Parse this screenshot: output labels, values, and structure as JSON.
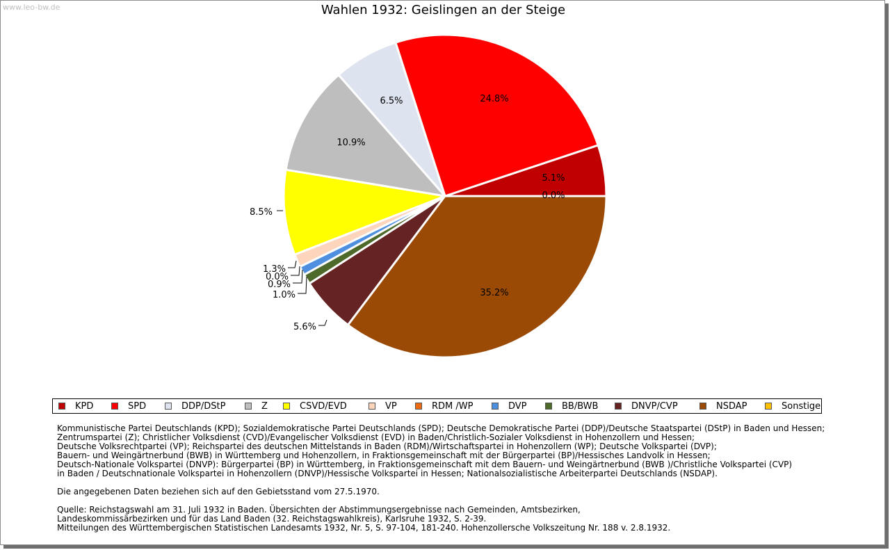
{
  "watermark": "www.leo-bw.de",
  "chart_data": {
    "type": "pie",
    "title": "Wahlen 1932: Geislingen an der Steige",
    "slices": [
      {
        "name": "KPD",
        "value": 5.1,
        "label": "5.1%",
        "color": "#c00000"
      },
      {
        "name": "SPD",
        "value": 24.8,
        "label": "24.8%",
        "color": "#ff0000"
      },
      {
        "name": "DDP/DStP",
        "value": 6.5,
        "label": "6.5%",
        "color": "#dde3ef"
      },
      {
        "name": "Z",
        "value": 10.9,
        "label": "10.9%",
        "color": "#bebebe"
      },
      {
        "name": "CSVD/EVD",
        "value": 8.5,
        "label": "8.5%",
        "color": "#ffff00"
      },
      {
        "name": "VP",
        "value": 1.3,
        "label": "1.3%",
        "color": "#fdd5bd"
      },
      {
        "name": "RDM /WP",
        "value": 0.0,
        "label": "0.0%",
        "color": "#ee6a10"
      },
      {
        "name": "DVP",
        "value": 0.9,
        "label": "0.9%",
        "color": "#4f8fdf"
      },
      {
        "name": "BB/BWB",
        "value": 1.0,
        "label": "1.0%",
        "color": "#4e6a2a"
      },
      {
        "name": "DNVP/CVP",
        "value": 5.6,
        "label": "5.6%",
        "color": "#652323"
      },
      {
        "name": "NSDAP",
        "value": 35.2,
        "label": "35.2%",
        "color": "#9a4a05"
      },
      {
        "name": "Sonstige",
        "value": 0.0,
        "label": "0.0%",
        "color": "#ffc000"
      }
    ]
  },
  "notes": {
    "parties": "Kommunistische Partei Deutschlands (KPD); Sozialdemokratische Partei Deutschlands (SPD); Deutsche Demokratische Partei (DDP)/Deutsche Staatspartei (DStP) in Baden und Hessen;\nZentrumspartei (Z); Christlicher Volksdienst (CVD)/Evangelischer Volksdienst (EVD) in Baden/Christlich-Sozialer Volksdienst in Hohenzollern und Hessen;\nDeutsche Volksrechtpartei (VP); Reichspartei des deutschen Mittelstands in Baden (RDM)/Wirtschaftspartei in Hohenzollern (WP); Deutsche Volkspartei (DVP);\nBauern- und Weingärtnerbund (BWB) in Württemberg und Hohenzollern, in Fraktionsgemeinschaft mit der Bürgerpartei (BP)/Hessisches Landvolk in Hessen;\nDeutsch-Nationale Volkspartei (DNVP): Bürgerpartei (BP) in Württemberg, in Fraktionsgemeinschaft mit dem Bauern- und Weingärtnerbund (BWB )/Christliche Volkspartei (CVP)\nin Baden / Deutschnationale Volkspartei in Hohenzollern (DNVP)/Hessische Volkspartei in Hessen; Nationalsozialistische Arbeiterpartei Deutschlands (NSDAP).",
    "territory": "Die angegebenen Daten beziehen sich auf den Gebietsstand vom 27.5.1970.",
    "source": "Quelle: Reichstagswahl am 31. Juli 1932 in Baden. Übersichten der Abstimmungsergebnisse nach Gemeinden, Amtsbezirken,\nLandeskommissärbezirken und für das Land Baden (32. Reichstagswahlkreis), Karlsruhe 1932, S. 2-39.\nMitteilungen des Württembergischen Statistischen Landesamts 1932, Nr. 5, S. 97-104, 181-240. Hohenzollersche Volkszeitung Nr. 188 v. 2.8.1932."
  }
}
